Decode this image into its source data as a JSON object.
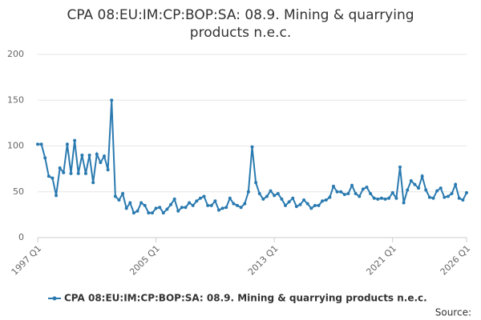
{
  "chart_data": {
    "type": "line",
    "title": "CPA 08:EU:IM:CP:BOP:SA: 08.9. Mining & quarrying products n.e.c.",
    "source": "Source:",
    "categories": [
      "1997 Q1",
      null,
      null,
      null,
      null,
      null,
      null,
      null,
      null,
      null,
      null,
      null,
      null,
      null,
      null,
      null,
      null,
      null,
      null,
      null,
      null,
      null,
      null,
      null,
      null,
      null,
      null,
      null,
      null,
      null,
      null,
      null,
      "2005 Q1",
      null,
      null,
      null,
      null,
      null,
      null,
      null,
      null,
      null,
      null,
      null,
      null,
      null,
      null,
      null,
      null,
      null,
      null,
      null,
      null,
      null,
      null,
      null,
      null,
      null,
      null,
      null,
      null,
      null,
      null,
      null,
      "2013 Q1",
      null,
      null,
      null,
      null,
      null,
      null,
      null,
      null,
      null,
      null,
      null,
      null,
      null,
      null,
      null,
      null,
      null,
      null,
      null,
      null,
      null,
      null,
      null,
      null,
      null,
      null,
      null,
      null,
      null,
      null,
      null,
      "2021 Q1",
      null,
      null,
      null,
      null,
      null,
      null,
      null,
      null,
      null,
      null,
      null,
      null,
      null,
      null,
      null,
      null,
      null,
      null,
      null,
      "2026 Q1"
    ],
    "series": [
      {
        "name": "CPA 08:EU:IM:CP:BOP:SA: 08.9. Mining & quarrying products n.e.c.",
        "color": "#2a7ab0",
        "values": [
          102,
          102,
          87,
          67,
          65,
          46,
          76,
          71,
          102,
          70,
          106,
          70,
          90,
          70,
          90,
          60,
          91,
          82,
          89,
          74,
          150,
          45,
          41,
          48,
          32,
          38,
          27,
          29,
          38,
          35,
          27,
          27,
          32,
          33,
          27,
          31,
          36,
          42,
          29,
          33,
          33,
          38,
          35,
          40,
          43,
          45,
          35,
          35,
          40,
          30,
          32,
          33,
          43,
          37,
          35,
          33,
          37,
          50,
          99,
          60,
          48,
          42,
          45,
          51,
          46,
          48,
          42,
          35,
          39,
          43,
          34,
          36,
          41,
          37,
          32,
          35,
          35,
          40,
          41,
          44,
          56,
          50,
          50,
          47,
          48,
          57,
          48,
          45,
          53,
          55,
          48,
          43,
          42,
          43,
          42,
          43,
          49,
          43,
          77,
          38,
          52,
          62,
          58,
          54,
          67,
          52,
          44,
          43,
          51,
          54,
          44,
          45,
          48,
          58,
          43,
          41,
          49
        ]
      }
    ],
    "ylim": [
      0,
      200
    ],
    "yticks": [
      0,
      50,
      100,
      150,
      200
    ],
    "grid": true
  }
}
